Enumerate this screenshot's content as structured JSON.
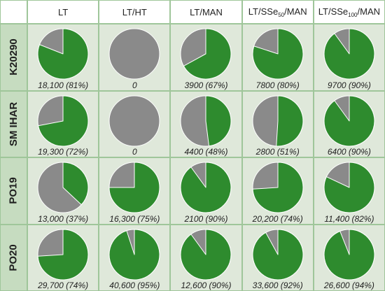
{
  "colors": {
    "green": "#2e8b2e",
    "gray": "#8a8a8a",
    "cell_bg": "#dfe8da",
    "rowhead_bg": "#c6dcc0",
    "grid_line": "#9fc69a"
  },
  "chart_data": {
    "type": "pie",
    "columns": [
      "LT",
      "LT/HT",
      "LT/MAN",
      "LT/SSe50/MAN",
      "LT/SSe100/MAN"
    ],
    "rows": [
      "K20290",
      "SM IHAR",
      "PO19",
      "PO20"
    ],
    "cells": [
      [
        {
          "label": "18,100 (81%)",
          "green_pct": 81
        },
        {
          "label": "0",
          "green_pct": 0
        },
        {
          "label": "3900 (67%)",
          "green_pct": 67
        },
        {
          "label": "7800 (80%)",
          "green_pct": 80
        },
        {
          "label": "9700 (90%)",
          "green_pct": 90
        }
      ],
      [
        {
          "label": "19,300 (72%)",
          "green_pct": 72
        },
        {
          "label": "0",
          "green_pct": 0
        },
        {
          "label": "4400 (48%)",
          "green_pct": 48
        },
        {
          "label": "2800 (51%)",
          "green_pct": 51
        },
        {
          "label": "6400 (90%)",
          "green_pct": 90
        }
      ],
      [
        {
          "label": "13,000 (37%)",
          "green_pct": 37
        },
        {
          "label": "16,300 (75%)",
          "green_pct": 75
        },
        {
          "label": "2100 (90%)",
          "green_pct": 90
        },
        {
          "label": "20,200 (74%)",
          "green_pct": 74
        },
        {
          "label": "11,400 (82%)",
          "green_pct": 82
        }
      ],
      [
        {
          "label": "29,700 (74%)",
          "green_pct": 74
        },
        {
          "label": "40,600 (95%)",
          "green_pct": 95
        },
        {
          "label": "12,600 (90%)",
          "green_pct": 90
        },
        {
          "label": "33,600 (92%)",
          "green_pct": 92
        },
        {
          "label": "26,600 (94%)",
          "green_pct": 94
        }
      ]
    ]
  }
}
